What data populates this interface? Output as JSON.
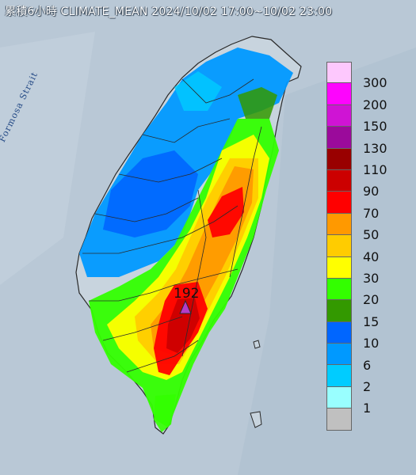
{
  "title": "累積6小時 CLIMATE_MEAN 2024/10/02 17:00~10/02 23:00",
  "strait_label": "Formosa Strait",
  "max_station_value": "192",
  "max_marker_color": "#b43cc8",
  "colors": {
    "sea": "#b9c8d6",
    "land_light": "#c8d4de",
    "county_border": "#2a2a2a"
  },
  "legend": {
    "labels": [
      "300",
      "200",
      "150",
      "130",
      "110",
      "90",
      "70",
      "50",
      "40",
      "30",
      "20",
      "15",
      "10",
      "6",
      "2",
      "1"
    ],
    "colors": [
      "#fdc8fd",
      "#fd05fd",
      "#cf14d4",
      "#9b0a9b",
      "#990000",
      "#cc0000",
      "#ff0000",
      "#ff9900",
      "#ffcc00",
      "#ffff00",
      "#33ff00",
      "#339900",
      "#0066ff",
      "#0099ff",
      "#00ccff",
      "#99ffff",
      "#c0c0c0"
    ]
  },
  "rain_zones": [
    {
      "name": "zone-north-light",
      "color": "#0099ff"
    },
    {
      "name": "zone-north-blue",
      "color": "#0066ff"
    },
    {
      "name": "zone-central-green",
      "color": "#33ff00"
    },
    {
      "name": "zone-mountain-yellow",
      "color": "#ffff00"
    },
    {
      "name": "zone-mountain-orange",
      "color": "#ffcc00"
    },
    {
      "name": "zone-heavy-orange",
      "color": "#ff9900"
    },
    {
      "name": "zone-heavy-red",
      "color": "#ff0000"
    },
    {
      "name": "zone-heavy-darkred",
      "color": "#cc0000"
    }
  ]
}
